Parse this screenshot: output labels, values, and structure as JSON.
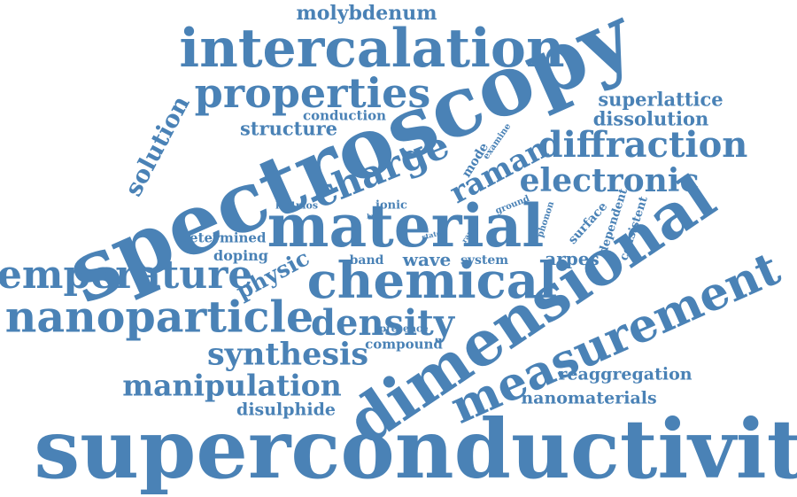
{
  "theme": {
    "word_color": "#4a82b6",
    "background": "#ffffff"
  },
  "words": [
    {
      "text": "superconductivity",
      "weight": 100
    },
    {
      "text": "spectroscopy",
      "weight": 97
    },
    {
      "text": "dimensional",
      "weight": 78
    },
    {
      "text": "material",
      "weight": 74
    },
    {
      "text": "intercalation",
      "weight": 66
    },
    {
      "text": "chemical",
      "weight": 64
    },
    {
      "text": "measurement",
      "weight": 62
    },
    {
      "text": "nanoparticle",
      "weight": 60
    },
    {
      "text": "temperature",
      "weight": 54
    },
    {
      "text": "properties",
      "weight": 53
    },
    {
      "text": "diffraction",
      "weight": 50
    },
    {
      "text": "charge",
      "weight": 50
    },
    {
      "text": "density",
      "weight": 48
    },
    {
      "text": "electronic",
      "weight": 45
    },
    {
      "text": "manipulation",
      "weight": 42
    },
    {
      "text": "synthesis",
      "weight": 42
    },
    {
      "text": "raman",
      "weight": 40
    },
    {
      "text": "solution",
      "weight": 34
    },
    {
      "text": "physic",
      "weight": 32
    },
    {
      "text": "molybdenum",
      "weight": 28
    },
    {
      "text": "structure",
      "weight": 27
    },
    {
      "text": "superlattice",
      "weight": 27
    },
    {
      "text": "dissolution",
      "weight": 27
    },
    {
      "text": "wave",
      "weight": 25
    },
    {
      "text": "arpes",
      "weight": 25
    },
    {
      "text": "reaggregation",
      "weight": 24
    },
    {
      "text": "disulphide",
      "weight": 24
    },
    {
      "text": "nanomaterials",
      "weight": 24
    },
    {
      "text": "doping",
      "weight": 21
    },
    {
      "text": "determined",
      "weight": 20
    },
    {
      "text": "conduction",
      "weight": 20
    },
    {
      "text": "compound",
      "weight": 20
    },
    {
      "text": "mode",
      "weight": 18
    },
    {
      "text": "surface",
      "weight": 18
    },
    {
      "text": "band",
      "weight": 18
    },
    {
      "text": "system",
      "weight": 18
    },
    {
      "text": "dependent",
      "weight": 17
    },
    {
      "text": "consistent",
      "weight": 17
    },
    {
      "text": "ionic",
      "weight": 16
    },
    {
      "text": "k04mos",
      "weight": 15
    },
    {
      "text": "examine",
      "weight": 14
    },
    {
      "text": "presence",
      "weight": 14
    },
    {
      "text": "ground",
      "weight": 14
    },
    {
      "text": "phonon",
      "weight": 14
    },
    {
      "text": "state",
      "weight": 11
    },
    {
      "text": "range",
      "weight": 11
    },
    {
      "text": "bulk",
      "weight": 10
    }
  ]
}
